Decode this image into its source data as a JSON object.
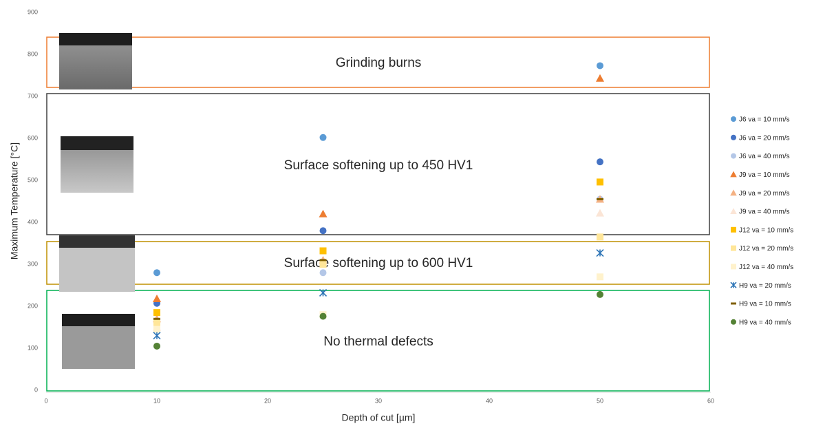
{
  "chart_data": {
    "type": "scatter",
    "x_label": "Depth of cut [µm]",
    "y_label": "Maximum Temperature [°C]",
    "xlim": [
      0,
      60
    ],
    "xticks": [
      0,
      10,
      20,
      30,
      40,
      50,
      60
    ],
    "ylim": [
      0,
      900
    ],
    "yticks": [
      0,
      100,
      200,
      300,
      400,
      500,
      600,
      700,
      800,
      900
    ],
    "annotations": [
      "Grinding burns",
      "Surface softening up to 450 HV1",
      "Surface softening up to 600 HV1",
      "No thermal defects"
    ],
    "series": [
      {
        "name": "J6 va = 10 mm/s",
        "color": "#5b9bd5",
        "marker": "circle",
        "x": [
          10,
          25,
          50
        ],
        "values": [
          280,
          602,
          773
        ]
      },
      {
        "name": "J6 va = 20 mm/s",
        "color": "#4472c4",
        "marker": "circle",
        "x": [
          10,
          25,
          50
        ],
        "values": [
          207,
          380,
          544
        ]
      },
      {
        "name": "J6 va = 40 mm/s",
        "color": "#b4c7e7",
        "marker": "circle",
        "x": [
          10,
          25,
          50
        ],
        "values": [
          157,
          280,
          455
        ]
      },
      {
        "name": "J9 va = 10 mm/s",
        "color": "#ed7d31",
        "marker": "triangle",
        "x": [
          10,
          25,
          50
        ],
        "values": [
          218,
          420,
          743
        ]
      },
      {
        "name": "J9 va = 20 mm/s",
        "color": "#f4b183",
        "marker": "triangle",
        "x": [
          10,
          25,
          50
        ],
        "values": [
          170,
          310,
          455
        ]
      },
      {
        "name": "J9 va = 40 mm/s",
        "color": "#fbe5d6",
        "marker": "triangle",
        "x": [
          10,
          25,
          50
        ],
        "values": [
          150,
          300,
          422
        ]
      },
      {
        "name": "J12 va = 10 mm/s",
        "color": "#ffc000",
        "marker": "square",
        "x": [
          10,
          25,
          50
        ],
        "values": [
          185,
          332,
          496
        ]
      },
      {
        "name": "J12 va = 20 mm/s",
        "color": "#ffe699",
        "marker": "square",
        "x": [
          10,
          25,
          50
        ],
        "values": [
          160,
          300,
          365
        ]
      },
      {
        "name": "J12 va = 40 mm/s",
        "color": "#fff2cc",
        "marker": "square",
        "x": [
          10,
          25,
          50
        ],
        "values": [
          145,
          180,
          270
        ]
      },
      {
        "name": "H9 va = 20 mm/s",
        "color": "#2e75b6",
        "marker": "star",
        "x": [
          10,
          25,
          50
        ],
        "values": [
          130,
          232,
          327
        ]
      },
      {
        "name": "H9 va = 10 mm/s",
        "color": "#806000",
        "marker": "dash",
        "x": [
          10,
          25,
          50
        ],
        "values": [
          170,
          310,
          455
        ]
      },
      {
        "name": "H9 va = 40 mm/s",
        "color": "#548235",
        "marker": "circle",
        "x": [
          10,
          25,
          50
        ],
        "values": [
          105,
          176,
          228
        ]
      }
    ]
  }
}
